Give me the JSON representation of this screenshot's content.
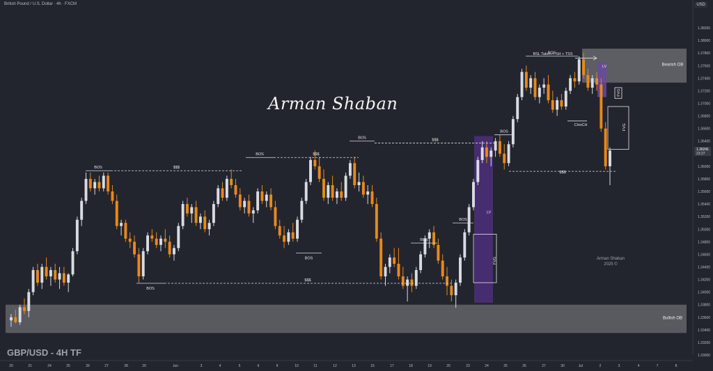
{
  "header": {
    "symbol_line": "British Pound / U.S. Dollar · 4h · FXCM",
    "currency": "USD"
  },
  "footer": {
    "title": "GBP/USD - 4H TF"
  },
  "signature": "Arman Shaban",
  "brand_logo": {
    "name": "Arman Shaban",
    "year": "2025 ©"
  },
  "colors": {
    "background": "#23252e",
    "bull_candle": "#d9dbe2",
    "bear_candle": "#e8891b",
    "zone_purple": "#4a2f78",
    "zone_gray": "#6b6c72"
  },
  "chart_data": {
    "type": "candlestick",
    "ylim": [
      1.33,
      1.384
    ],
    "y_ticks": [
      "1.38200",
      "1.38000",
      "1.37800",
      "1.37600",
      "1.37400",
      "1.37200",
      "1.37000",
      "1.36800",
      "1.36600",
      "1.36400",
      "1.36200",
      "1.36000",
      "1.35800",
      "1.35600",
      "1.35400",
      "1.35200",
      "1.35000",
      "1.34800",
      "1.34600",
      "1.34400",
      "1.34200",
      "1.34000",
      "1.33800",
      "1.33600",
      "1.33400",
      "1.33200",
      "1.33000"
    ],
    "x_ticks": [
      "20",
      "21",
      "24",
      "25",
      "26",
      "27",
      "28",
      "29",
      "Jun",
      "3",
      "4",
      "5",
      "6",
      "9",
      "10",
      "11",
      "12",
      "13",
      "16",
      "17",
      "18",
      "19",
      "20",
      "23",
      "24",
      "25",
      "26",
      "27",
      "30",
      "Jul",
      "2",
      "3",
      "4",
      "7",
      "8"
    ],
    "last_price": "1.36241",
    "countdown": "23:27",
    "annotations": [
      {
        "label": "BOS",
        "type": "bos"
      },
      {
        "label": "$$$",
        "type": "liquidity"
      },
      {
        "label": "BOS",
        "type": "bos"
      },
      {
        "label": "$$$",
        "type": "liquidity"
      },
      {
        "label": "BOS",
        "type": "bos"
      },
      {
        "label": "$$$",
        "type": "liquidity"
      },
      {
        "label": "BOS",
        "type": "bos"
      },
      {
        "label": "BOS",
        "type": "bos"
      },
      {
        "label": "BOS",
        "type": "bos"
      },
      {
        "label": "BOS",
        "type": "bos"
      },
      {
        "label": "$$$",
        "type": "liquidity"
      },
      {
        "label": "BOS",
        "type": "bos"
      },
      {
        "label": "BOS",
        "type": "bos"
      },
      {
        "label": "LV",
        "type": "zone-label"
      },
      {
        "label": "FVG",
        "type": "zone-label"
      },
      {
        "label": "BSL Taken + SH + TSS",
        "type": "note"
      },
      {
        "label": "LV",
        "type": "zone-label"
      },
      {
        "label": "CHoCH",
        "type": "structure"
      },
      {
        "label": "FVG",
        "type": "zone-label"
      },
      {
        "label": "FVG",
        "type": "zone-label"
      },
      {
        "label": "$$$",
        "type": "liquidity"
      },
      {
        "label": "Bearish OB",
        "type": "zone"
      },
      {
        "label": "Bullish OB",
        "type": "zone"
      }
    ],
    "candles": [
      [
        1.3355,
        1.3365,
        1.3345,
        1.336
      ],
      [
        1.336,
        1.3372,
        1.335,
        1.3352
      ],
      [
        1.3352,
        1.338,
        1.3348,
        1.3376
      ],
      [
        1.3376,
        1.339,
        1.3365,
        1.337
      ],
      [
        1.337,
        1.3405,
        1.336,
        1.34
      ],
      [
        1.34,
        1.344,
        1.3395,
        1.3435
      ],
      [
        1.3435,
        1.3445,
        1.341,
        1.3415
      ],
      [
        1.3415,
        1.3445,
        1.3405,
        1.344
      ],
      [
        1.344,
        1.3455,
        1.342,
        1.3425
      ],
      [
        1.3425,
        1.344,
        1.341,
        1.3435
      ],
      [
        1.3435,
        1.3445,
        1.3415,
        1.342
      ],
      [
        1.342,
        1.344,
        1.3405,
        1.343
      ],
      [
        1.343,
        1.344,
        1.341,
        1.3415
      ],
      [
        1.3415,
        1.343,
        1.34,
        1.3428
      ],
      [
        1.3428,
        1.347,
        1.3425,
        1.3465
      ],
      [
        1.3465,
        1.352,
        1.346,
        1.3515
      ],
      [
        1.3515,
        1.355,
        1.3505,
        1.3545
      ],
      [
        1.3545,
        1.359,
        1.354,
        1.358
      ],
      [
        1.358,
        1.359,
        1.356,
        1.3565
      ],
      [
        1.3565,
        1.358,
        1.3555,
        1.3575
      ],
      [
        1.3575,
        1.3585,
        1.356,
        1.3565
      ],
      [
        1.3565,
        1.359,
        1.356,
        1.3585
      ],
      [
        1.3585,
        1.359,
        1.3555,
        1.356
      ],
      [
        1.356,
        1.357,
        1.354,
        1.3545
      ],
      [
        1.3545,
        1.3555,
        1.35,
        1.3505
      ],
      [
        1.3505,
        1.3515,
        1.349,
        1.351
      ],
      [
        1.351,
        1.3515,
        1.348,
        1.3485
      ],
      [
        1.3485,
        1.3495,
        1.347,
        1.348
      ],
      [
        1.348,
        1.349,
        1.3455,
        1.346
      ],
      [
        1.346,
        1.347,
        1.3415,
        1.3425
      ],
      [
        1.3425,
        1.347,
        1.342,
        1.3465
      ],
      [
        1.3465,
        1.3495,
        1.346,
        1.349
      ],
      [
        1.349,
        1.35,
        1.348,
        1.3485
      ],
      [
        1.3485,
        1.3495,
        1.347,
        1.3475
      ],
      [
        1.3475,
        1.349,
        1.3465,
        1.3485
      ],
      [
        1.3485,
        1.35,
        1.347,
        1.348
      ],
      [
        1.348,
        1.349,
        1.3455,
        1.346
      ],
      [
        1.346,
        1.3475,
        1.345,
        1.347
      ],
      [
        1.347,
        1.351,
        1.3465,
        1.3505
      ],
      [
        1.3505,
        1.3545,
        1.35,
        1.354
      ],
      [
        1.354,
        1.355,
        1.352,
        1.3525
      ],
      [
        1.3525,
        1.354,
        1.351,
        1.3535
      ],
      [
        1.3535,
        1.3545,
        1.3505,
        1.351
      ],
      [
        1.351,
        1.3525,
        1.35,
        1.352
      ],
      [
        1.352,
        1.353,
        1.3495,
        1.35
      ],
      [
        1.35,
        1.3515,
        1.349,
        1.351
      ],
      [
        1.351,
        1.3545,
        1.3505,
        1.354
      ],
      [
        1.354,
        1.357,
        1.3535,
        1.3565
      ],
      [
        1.3565,
        1.3575,
        1.3545,
        1.355
      ],
      [
        1.355,
        1.3585,
        1.3545,
        1.358
      ],
      [
        1.358,
        1.3595,
        1.3565,
        1.357
      ],
      [
        1.357,
        1.358,
        1.355,
        1.3555
      ],
      [
        1.3555,
        1.3565,
        1.353,
        1.3535
      ],
      [
        1.3535,
        1.355,
        1.3525,
        1.3545
      ],
      [
        1.3545,
        1.3555,
        1.352,
        1.3525
      ],
      [
        1.3525,
        1.3535,
        1.351,
        1.353
      ],
      [
        1.353,
        1.3565,
        1.3525,
        1.356
      ],
      [
        1.356,
        1.357,
        1.354,
        1.3545
      ],
      [
        1.3545,
        1.356,
        1.3535,
        1.3555
      ],
      [
        1.3555,
        1.3565,
        1.353,
        1.3535
      ],
      [
        1.3535,
        1.3545,
        1.35,
        1.3505
      ],
      [
        1.3505,
        1.3515,
        1.3485,
        1.349
      ],
      [
        1.349,
        1.3505,
        1.347,
        1.348
      ],
      [
        1.348,
        1.35,
        1.3475,
        1.3495
      ],
      [
        1.3495,
        1.351,
        1.348,
        1.3485
      ],
      [
        1.3485,
        1.352,
        1.348,
        1.3515
      ],
      [
        1.3515,
        1.355,
        1.351,
        1.3545
      ],
      [
        1.3545,
        1.358,
        1.354,
        1.3575
      ],
      [
        1.3575,
        1.3615,
        1.357,
        1.361
      ],
      [
        1.361,
        1.3625,
        1.3595,
        1.36
      ],
      [
        1.36,
        1.3615,
        1.3575,
        1.358
      ],
      [
        1.358,
        1.3595,
        1.3545,
        1.355
      ],
      [
        1.355,
        1.3575,
        1.354,
        1.357
      ],
      [
        1.357,
        1.3585,
        1.3545,
        1.355
      ],
      [
        1.355,
        1.3565,
        1.354,
        1.356
      ],
      [
        1.356,
        1.3575,
        1.3545,
        1.355
      ],
      [
        1.355,
        1.359,
        1.3545,
        1.3585
      ],
      [
        1.3585,
        1.361,
        1.358,
        1.3605
      ],
      [
        1.3605,
        1.3615,
        1.3565,
        1.357
      ],
      [
        1.357,
        1.359,
        1.356,
        1.3575
      ],
      [
        1.3575,
        1.3585,
        1.355,
        1.3555
      ],
      [
        1.3555,
        1.357,
        1.354,
        1.356
      ],
      [
        1.356,
        1.357,
        1.3535,
        1.354
      ],
      [
        1.354,
        1.355,
        1.348,
        1.3485
      ],
      [
        1.3485,
        1.3495,
        1.342,
        1.3425
      ],
      [
        1.3425,
        1.3445,
        1.341,
        1.344
      ],
      [
        1.344,
        1.346,
        1.343,
        1.3455
      ],
      [
        1.3455,
        1.347,
        1.344,
        1.3445
      ],
      [
        1.3445,
        1.347,
        1.342,
        1.3425
      ],
      [
        1.3425,
        1.344,
        1.3405,
        1.341
      ],
      [
        1.341,
        1.3425,
        1.3385,
        1.342
      ],
      [
        1.342,
        1.343,
        1.34,
        1.341
      ],
      [
        1.341,
        1.344,
        1.3405,
        1.3435
      ],
      [
        1.3435,
        1.3465,
        1.343,
        1.346
      ],
      [
        1.346,
        1.349,
        1.3455,
        1.3485
      ],
      [
        1.3485,
        1.35,
        1.347,
        1.3495
      ],
      [
        1.3495,
        1.3505,
        1.347,
        1.3475
      ],
      [
        1.3475,
        1.3485,
        1.3445,
        1.345
      ],
      [
        1.345,
        1.346,
        1.342,
        1.3425
      ],
      [
        1.3425,
        1.344,
        1.3395,
        1.341
      ],
      [
        1.341,
        1.342,
        1.3385,
        1.3395
      ],
      [
        1.3395,
        1.342,
        1.3375,
        1.3415
      ],
      [
        1.3415,
        1.346,
        1.341,
        1.3455
      ],
      [
        1.3455,
        1.35,
        1.345,
        1.3495
      ],
      [
        1.3495,
        1.354,
        1.349,
        1.3535
      ],
      [
        1.3535,
        1.358,
        1.353,
        1.3575
      ],
      [
        1.3575,
        1.3615,
        1.357,
        1.361
      ],
      [
        1.361,
        1.364,
        1.3605,
        1.363
      ],
      [
        1.363,
        1.364,
        1.3605,
        1.3615
      ],
      [
        1.3615,
        1.363,
        1.36,
        1.3625
      ],
      [
        1.3625,
        1.3645,
        1.3615,
        1.364
      ],
      [
        1.364,
        1.365,
        1.3615,
        1.362
      ],
      [
        1.362,
        1.3635,
        1.3595,
        1.3605
      ],
      [
        1.3605,
        1.364,
        1.36,
        1.3635
      ],
      [
        1.3635,
        1.368,
        1.363,
        1.3675
      ],
      [
        1.3675,
        1.3715,
        1.367,
        1.371
      ],
      [
        1.371,
        1.3755,
        1.3705,
        1.375
      ],
      [
        1.375,
        1.376,
        1.372,
        1.3725
      ],
      [
        1.3725,
        1.3745,
        1.3715,
        1.374
      ],
      [
        1.374,
        1.375,
        1.3705,
        1.371
      ],
      [
        1.371,
        1.373,
        1.37,
        1.3725
      ],
      [
        1.3725,
        1.374,
        1.3715,
        1.373
      ],
      [
        1.373,
        1.3745,
        1.37,
        1.3705
      ],
      [
        1.3705,
        1.372,
        1.3685,
        1.369
      ],
      [
        1.369,
        1.371,
        1.368,
        1.3705
      ],
      [
        1.3705,
        1.3715,
        1.369,
        1.3695
      ],
      [
        1.3695,
        1.3725,
        1.369,
        1.372
      ],
      [
        1.372,
        1.3745,
        1.3715,
        1.374
      ],
      [
        1.374,
        1.375,
        1.3725,
        1.3735
      ],
      [
        1.3735,
        1.3775,
        1.373,
        1.377
      ],
      [
        1.377,
        1.378,
        1.374,
        1.3745
      ],
      [
        1.3745,
        1.3755,
        1.372,
        1.3725
      ],
      [
        1.3725,
        1.3745,
        1.3715,
        1.374
      ],
      [
        1.374,
        1.375,
        1.372,
        1.373
      ],
      [
        1.373,
        1.374,
        1.3655,
        1.366
      ],
      [
        1.366,
        1.367,
        1.3595,
        1.36
      ],
      [
        1.36,
        1.363,
        1.357,
        1.3625
      ]
    ]
  }
}
